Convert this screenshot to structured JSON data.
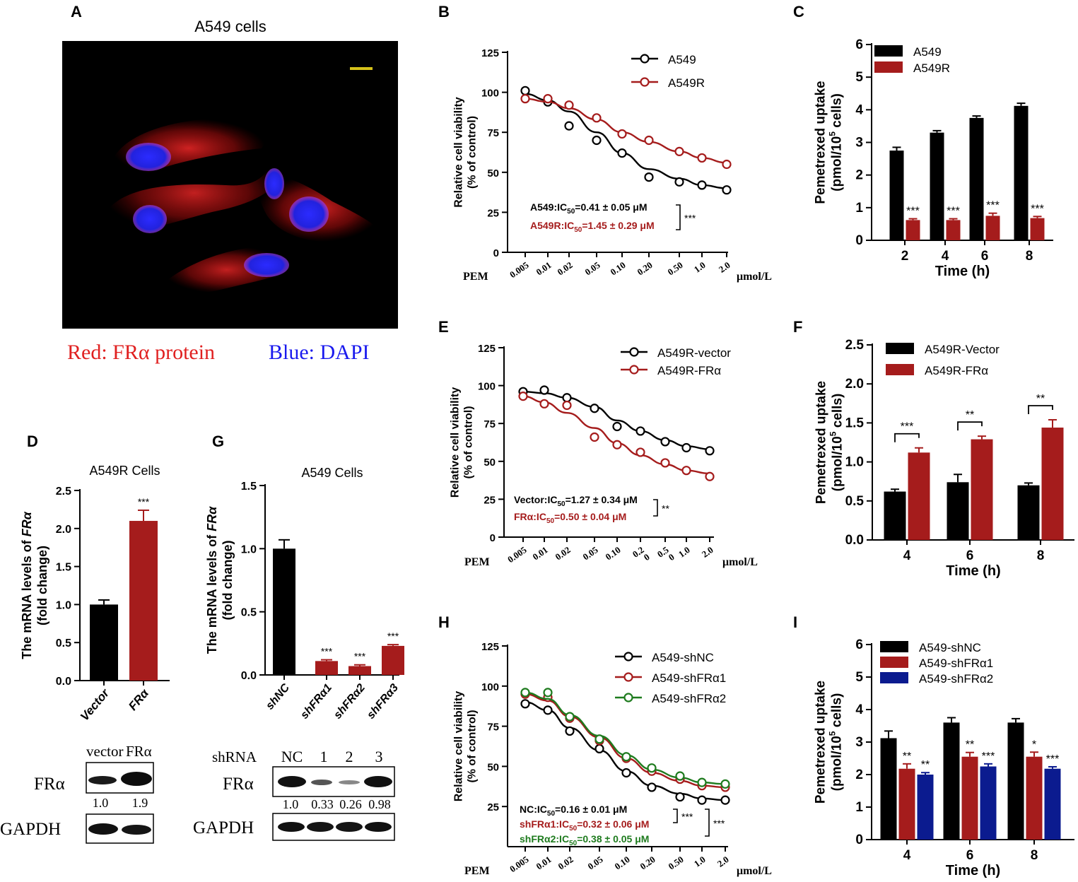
{
  "colors": {
    "black": "#000000",
    "red": "#a51c1c",
    "green": "#1e7b1e",
    "blue": "#0b1b8f",
    "yellow": "#d6c21a"
  },
  "panel_letters": {
    "A": "A",
    "B": "B",
    "C": "C",
    "D": "D",
    "E": "E",
    "F": "F",
    "G": "G",
    "H": "H",
    "I": "I"
  },
  "micrograph": {
    "title": "A549 cells",
    "caption_red": "Red: FRα protein",
    "caption_blue": "Blue: DAPI",
    "image_description": "Confocal image of A549 cells: red FRα staining around blue DAPI-stained nuclei on black background"
  },
  "ic50_axis": {
    "pem_label": "PEM",
    "unit_label": "μmol/L",
    "ylabel_line1": "Relative cell viability",
    "ylabel_line2": "(% of control)"
  },
  "uptake_axis": {
    "ylabel_line1": "Pemetrexed uptake",
    "ylabel_line2_pre": "(pmol/10",
    "ylabel_line2_sup": "5",
    "ylabel_line2_post": " cells)"
  },
  "mrna_axis": {
    "ylabel_line1_pre": "The mRNA levels of ",
    "ylabel_line1_gene": "FRα",
    "ylabel_line2": "(fold change)"
  },
  "blots": {
    "D": {
      "headers": [
        "vector",
        "FRα"
      ],
      "row1_label": "FRα",
      "row2_label": "GAPDH",
      "quant": [
        "1.0",
        "1.9"
      ]
    },
    "G": {
      "lead_label": "shRNA",
      "headers": [
        "NC",
        "1",
        "2",
        "3"
      ],
      "row1_label": "FRα",
      "row2_label": "GAPDH",
      "quant": [
        "1.0",
        "0.33",
        "0.26",
        "0.98"
      ]
    }
  },
  "chart_data": [
    {
      "id": "B",
      "type": "line",
      "xlabel": "PEM (μmol/L)",
      "ylabel": "Relative cell viability (% of control)",
      "x_tick_labels": [
        "0.005",
        "0.01",
        "0.02",
        "0.05",
        "0.10",
        "0.20",
        "0.50",
        "1.0",
        "2.0"
      ],
      "yticks": [
        "0",
        "25",
        "50",
        "75",
        "100",
        "125"
      ],
      "ylim": [
        0,
        125
      ],
      "series": [
        {
          "name": "A549",
          "color": "black",
          "values": [
            101,
            94,
            79,
            70,
            62,
            47,
            44,
            42,
            39
          ],
          "fit": [
            99,
            95,
            88,
            75,
            62,
            52,
            46,
            42,
            40
          ]
        },
        {
          "name": "A549R",
          "color": "red",
          "values": [
            96,
            96,
            92,
            84,
            74,
            70,
            63,
            59,
            55
          ],
          "fit": [
            96,
            94,
            90,
            83,
            75,
            69,
            63,
            59,
            56
          ]
        }
      ],
      "annotation_lines": [
        {
          "pre": "A549:IC",
          "sub": "50",
          "post": "=0.41 ± 0.05 μM",
          "color": "black"
        },
        {
          "pre": "A549R:IC",
          "sub": "50",
          "post": "=1.45 ± 0.29 μM",
          "color": "red"
        }
      ],
      "significance": "***",
      "legend_position": "top-right"
    },
    {
      "id": "C",
      "type": "bar",
      "xlabel": "Time (h)",
      "ylabel": "Pemetrexed uptake (pmol/10^5 cells)",
      "categories": [
        "2",
        "4",
        "6",
        "8"
      ],
      "yticks": [
        "0",
        "1",
        "2",
        "3",
        "4",
        "5",
        "6"
      ],
      "ylim": [
        0,
        6
      ],
      "series": [
        {
          "name": "A549",
          "color": "black",
          "values": [
            2.75,
            3.3,
            3.75,
            4.12
          ],
          "errors": [
            0.1,
            0.06,
            0.06,
            0.08
          ],
          "stars": [
            "",
            "",
            "",
            ""
          ]
        },
        {
          "name": "A549R",
          "color": "red",
          "values": [
            0.62,
            0.62,
            0.75,
            0.68
          ],
          "errors": [
            0.04,
            0.04,
            0.08,
            0.05
          ],
          "stars": [
            "***",
            "***",
            "***",
            "***"
          ]
        }
      ],
      "legend_position": "top-left"
    },
    {
      "id": "D",
      "type": "bar",
      "title": "A549R Cells",
      "ylabel": "The mRNA levels of FRα (fold change)",
      "categories": [
        "Vector",
        "FRα"
      ],
      "values": [
        1.0,
        2.1
      ],
      "errors": [
        0.06,
        0.14
      ],
      "colors": [
        "black",
        "red"
      ],
      "stars": [
        "",
        "***"
      ],
      "yticks": [
        "0.0",
        "0.5",
        "1.0",
        "1.5",
        "2.0",
        "2.5"
      ],
      "ylim": [
        0,
        2.5
      ]
    },
    {
      "id": "G",
      "type": "bar",
      "title": "A549 Cells",
      "ylabel": "The mRNA levels of FRα (fold change)",
      "categories": [
        "shNC",
        "shFRα1",
        "shFRα2",
        "shFRα3"
      ],
      "values": [
        1.0,
        0.11,
        0.07,
        0.23
      ],
      "errors": [
        0.07,
        0.01,
        0.01,
        0.01
      ],
      "colors": [
        "black",
        "red",
        "red",
        "red"
      ],
      "stars": [
        "",
        "***",
        "***",
        "***"
      ],
      "yticks": [
        "0.0",
        "0.5",
        "1.0",
        "1.5"
      ],
      "ylim": [
        0,
        1.5
      ]
    },
    {
      "id": "E",
      "type": "line",
      "xlabel": "PEM (μmol/L)",
      "ylabel": "Relative cell viability (% of control)",
      "x_tick_labels": [
        "0.005",
        "0.01",
        "0.02",
        "0.05",
        "0.10",
        "0.2\n0",
        "0.5\n0",
        "1.0",
        "2.0"
      ],
      "yticks": [
        "0",
        "25",
        "50",
        "75",
        "100",
        "125"
      ],
      "ylim": [
        0,
        125
      ],
      "series": [
        {
          "name": "A549R-vector",
          "color": "black",
          "values": [
            96,
            97,
            92,
            85,
            73,
            70,
            63,
            59,
            57
          ],
          "fit": [
            96,
            95,
            92,
            86,
            77,
            70,
            64,
            60,
            58
          ]
        },
        {
          "name": "A549R-FRα",
          "color": "red",
          "values": [
            93,
            88,
            87,
            66,
            61,
            56,
            49,
            44,
            40
          ],
          "fit": [
            93,
            89,
            82,
            72,
            62,
            54,
            48,
            44,
            42
          ]
        }
      ],
      "annotation_lines": [
        {
          "pre": "Vector:IC",
          "sub": "50",
          "post": "=1.27 ± 0.34 μM",
          "color": "black"
        },
        {
          "pre": "FRα:IC",
          "sub": "50",
          "post": "=0.50 ± 0.04 μM",
          "color": "red"
        }
      ],
      "significance": "**",
      "legend_position": "top-right"
    },
    {
      "id": "F",
      "type": "bar",
      "xlabel": "Time (h)",
      "ylabel": "Pemetrexed uptake (pmol/10^5 cells)",
      "categories": [
        "4",
        "6",
        "8"
      ],
      "yticks": [
        "0.0",
        "0.5",
        "1.0",
        "1.5",
        "2.0",
        "2.5"
      ],
      "ylim": [
        0,
        2.5
      ],
      "series": [
        {
          "name": "A549R-Vector",
          "color": "black",
          "values": [
            0.62,
            0.74,
            0.7
          ],
          "errors": [
            0.03,
            0.1,
            0.03
          ]
        },
        {
          "name": "A549R-FRα",
          "color": "red",
          "values": [
            1.12,
            1.29,
            1.44
          ],
          "errors": [
            0.06,
            0.04,
            0.1
          ]
        }
      ],
      "pair_significance": [
        "***",
        "**",
        "**"
      ],
      "legend_position": "top-left"
    },
    {
      "id": "H",
      "type": "line",
      "xlabel": "PEM (μmol/L)",
      "ylabel": "Relative cell viability (% of control)",
      "x_tick_labels": [
        "0.005",
        "0.01",
        "0.02",
        "0.05",
        "0.10",
        "0.20",
        "0.50",
        "1.0",
        "2.0"
      ],
      "yticks": [
        "25",
        "50",
        "75",
        "100",
        "125"
      ],
      "ylim": [
        0,
        125
      ],
      "series": [
        {
          "name": "A549-shNC",
          "color": "black",
          "values": [
            89,
            85,
            72,
            61,
            46,
            37,
            31,
            29,
            29
          ],
          "fit": [
            90,
            85,
            74,
            60,
            47,
            38,
            33,
            30,
            29
          ]
        },
        {
          "name": "A549-shFRα1",
          "color": "red",
          "values": [
            95,
            93,
            80,
            66,
            55,
            47,
            42,
            38,
            37
          ],
          "fit": [
            95,
            91,
            81,
            68,
            55,
            46,
            41,
            38,
            37
          ]
        },
        {
          "name": "A549-shFRα2",
          "color": "green",
          "values": [
            96,
            96,
            81,
            67,
            56,
            49,
            44,
            40,
            39
          ],
          "fit": [
            96,
            92,
            82,
            69,
            57,
            48,
            43,
            40,
            39
          ]
        }
      ],
      "annotation_lines": [
        {
          "pre": "NC:IC",
          "sub": "50",
          "post": "=0.16 ± 0.01 μM",
          "color": "black"
        },
        {
          "pre": "shFRα1:IC",
          "sub": "50",
          "post": "=0.32 ± 0.06 μM",
          "color": "red"
        },
        {
          "pre": "shFRα2:IC",
          "sub": "50",
          "post": "=0.38 ± 0.05 μM",
          "color": "green"
        }
      ],
      "significance": [
        "***",
        "***"
      ],
      "legend_position": "top-right"
    },
    {
      "id": "I",
      "type": "bar",
      "xlabel": "Time (h)",
      "ylabel": "Pemetrexed uptake (pmol/10^5 cells)",
      "categories": [
        "4",
        "6",
        "8"
      ],
      "yticks": [
        "0",
        "1",
        "2",
        "3",
        "4",
        "5",
        "6"
      ],
      "ylim": [
        0,
        6
      ],
      "series": [
        {
          "name": "A549-shNC",
          "color": "black",
          "values": [
            3.12,
            3.6,
            3.6
          ],
          "errors": [
            0.22,
            0.15,
            0.12
          ],
          "stars": [
            "",
            "",
            ""
          ]
        },
        {
          "name": "A549-shFRα1",
          "color": "red",
          "values": [
            2.18,
            2.55,
            2.55
          ],
          "errors": [
            0.15,
            0.13,
            0.14
          ],
          "stars": [
            "**",
            "**",
            "*"
          ]
        },
        {
          "name": "A549-shFRα2",
          "color": "blue",
          "values": [
            2.0,
            2.25,
            2.18
          ],
          "errors": [
            0.06,
            0.08,
            0.06
          ],
          "stars": [
            "**",
            "***",
            "***"
          ]
        }
      ],
      "legend_position": "top-left"
    }
  ]
}
